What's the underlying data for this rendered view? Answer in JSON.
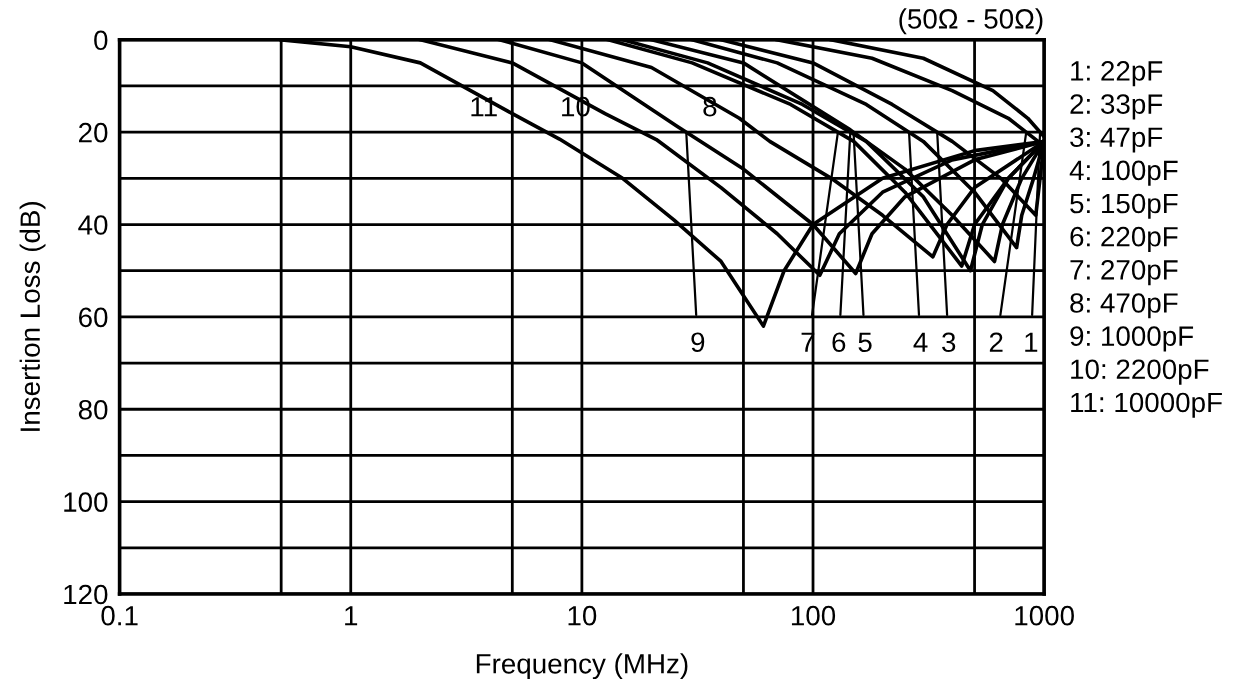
{
  "chart_data": {
    "type": "line",
    "subtitle": "(50Ω - 50Ω)",
    "xlabel": "Frequency (MHz)",
    "ylabel": "Insertion Loss (dB)",
    "log": "x",
    "xlim": [
      0.1,
      1000
    ],
    "ylim": [
      120,
      0
    ],
    "xticks": [
      0.1,
      {
        "value": 0.5,
        "label": null
      },
      1,
      {
        "value": 5,
        "label": null
      },
      10,
      {
        "value": 50,
        "label": null
      },
      100,
      {
        "value": 500,
        "label": null
      },
      1000
    ],
    "yticks": [
      0,
      {
        "value": 10,
        "label": null
      },
      20,
      {
        "value": 30,
        "label": null
      },
      40,
      {
        "value": 50,
        "label": null
      },
      60,
      {
        "value": 70,
        "label": null
      },
      80,
      {
        "value": 90,
        "label": null
      },
      100,
      {
        "value": 110,
        "label": null
      },
      120
    ],
    "grid": true,
    "marker": "none",
    "line_style": "solid",
    "annotations": [
      "1: 22pF",
      "2: 33pF",
      "3: 47pF",
      "4: 100pF",
      "5: 150pF",
      "6: 220pF",
      "7: 270pF",
      "8: 470pF",
      "9: 1000pF",
      "10: 2200pF",
      "11: 10000pF"
    ],
    "series": [
      {
        "name": "1",
        "color": "#000000",
        "x": [
          120,
          300,
          600,
          850,
          1000
        ],
        "values": [
          0,
          4,
          11,
          17,
          21
        ]
      },
      {
        "name": "2",
        "color": "#000000",
        "x": [
          70,
          180,
          400,
          700,
          1000
        ],
        "values": [
          0,
          4,
          11,
          17,
          23
        ]
      },
      {
        "name": "3",
        "color": "#000000",
        "x": [
          40,
          100,
          220,
          400,
          650,
          920,
          960,
          1000
        ],
        "values": [
          0,
          5,
          14,
          22,
          30,
          38,
          30,
          22
        ]
      },
      {
        "name": "4",
        "color": "#000000",
        "x": [
          30,
          70,
          170,
          300,
          500,
          760,
          800,
          900,
          1000
        ],
        "values": [
          0,
          5,
          14,
          22,
          33,
          45,
          38,
          30,
          22
        ]
      },
      {
        "name": "5",
        "color": "#000000",
        "x": [
          20,
          50,
          145,
          250,
          400,
          610,
          660,
          800,
          1000
        ],
        "values": [
          0,
          5,
          19.5,
          28,
          38,
          48,
          40,
          30,
          22
        ]
      },
      {
        "name": "6",
        "color": "#000000",
        "x": [
          15,
          35,
          90,
          170,
          300,
          480,
          540,
          700,
          1000
        ],
        "values": [
          0,
          5,
          14,
          22,
          34,
          50,
          40,
          30,
          22
        ]
      },
      {
        "name": "7",
        "color": "#000000",
        "x": [
          13,
          30,
          80,
          150,
          250,
          440,
          500,
          700,
          1000
        ],
        "values": [
          0,
          5,
          14,
          22,
          33,
          49,
          40,
          30,
          22
        ]
      },
      {
        "name": "8",
        "color": "#000000",
        "x": [
          7.3,
          20,
          48,
          65,
          120,
          200,
          330,
          380,
          500,
          1000
        ],
        "values": [
          0,
          6,
          17,
          22,
          30,
          38,
          47,
          40,
          32,
          22
        ]
      },
      {
        "name": "9",
        "color": "#000000",
        "x": [
          4.4,
          10,
          25.6,
          50,
          100,
          153,
          180,
          250,
          500,
          1000
        ],
        "values": [
          0,
          5,
          18.6,
          28,
          40,
          50.6,
          42,
          34,
          26,
          22
        ]
      },
      {
        "name": "10",
        "color": "#000000",
        "x": [
          2,
          5,
          12.6,
          21,
          40,
          70,
          107,
          130,
          200,
          400,
          1000
        ],
        "values": [
          0,
          5,
          16,
          21.6,
          32,
          42,
          51,
          42,
          33,
          26,
          22
        ]
      },
      {
        "name": "11",
        "color": "#000000",
        "x": [
          0.5,
          1,
          2,
          5,
          8,
          15,
          25,
          40,
          61,
          75,
          100,
          200,
          500,
          1000
        ],
        "values": [
          0,
          1.5,
          5,
          16,
          21.5,
          30,
          39,
          48,
          62,
          50,
          40,
          30,
          24,
          22
        ]
      }
    ]
  }
}
